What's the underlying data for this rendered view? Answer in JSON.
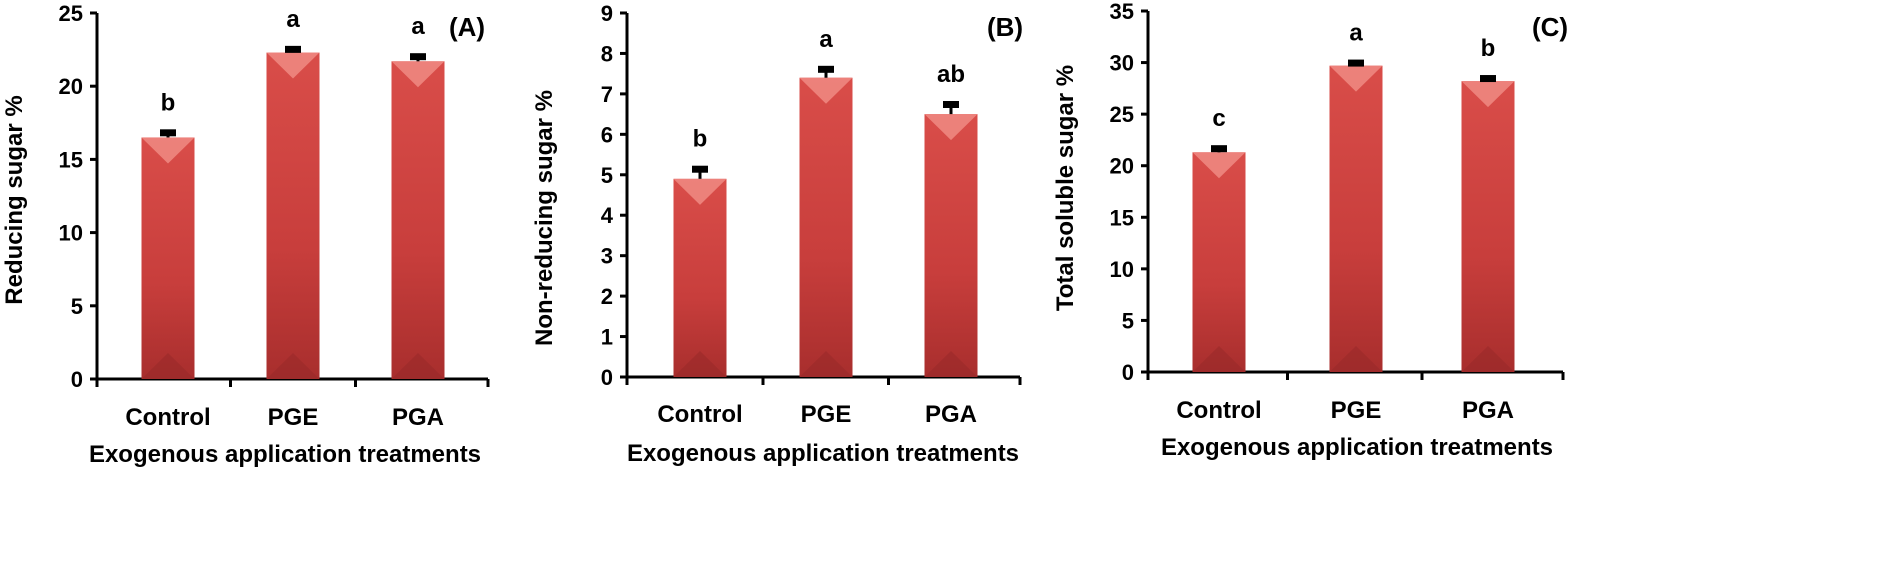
{
  "chart_data": [
    {
      "type": "bar",
      "panel_label": "(A)",
      "categories": [
        "Control",
        "PGE",
        "PGA"
      ],
      "values": [
        16.5,
        22.3,
        21.7
      ],
      "errors": [
        0.35,
        0.25,
        0.35
      ],
      "significance": [
        "b",
        "a",
        "a"
      ],
      "ylabel": "Reducing sugar %",
      "xlabel": "Exogenous application treatments",
      "ylim": [
        0,
        25
      ],
      "yticks": [
        0,
        5,
        10,
        15,
        20,
        25
      ],
      "color": "#C8403E"
    },
    {
      "type": "bar",
      "panel_label": "(B)",
      "categories": [
        "Control",
        "PGE",
        "PGA"
      ],
      "values": [
        4.9,
        7.4,
        6.5
      ],
      "errors": [
        0.25,
        0.22,
        0.25
      ],
      "significance": [
        "b",
        "a",
        "ab"
      ],
      "ylabel": "Non-reducing sugar %",
      "xlabel": "Exogenous application treatments",
      "ylim": [
        0,
        9
      ],
      "yticks": [
        0,
        1,
        2,
        3,
        4,
        5,
        6,
        7,
        8,
        9
      ],
      "color": "#C8403E"
    },
    {
      "type": "bar",
      "panel_label": "(C)",
      "categories": [
        "Control",
        "PGE",
        "PGA"
      ],
      "values": [
        21.3,
        29.7,
        28.2
      ],
      "errors": [
        0.4,
        0.3,
        0.3
      ],
      "significance": [
        "c",
        "a",
        "b"
      ],
      "ylabel": "Total soluble sugar %",
      "xlabel": "Exogenous application treatments",
      "ylim": [
        0,
        35
      ],
      "yticks": [
        0,
        5,
        10,
        15,
        20,
        25,
        30,
        35
      ],
      "color": "#C8403E"
    }
  ]
}
